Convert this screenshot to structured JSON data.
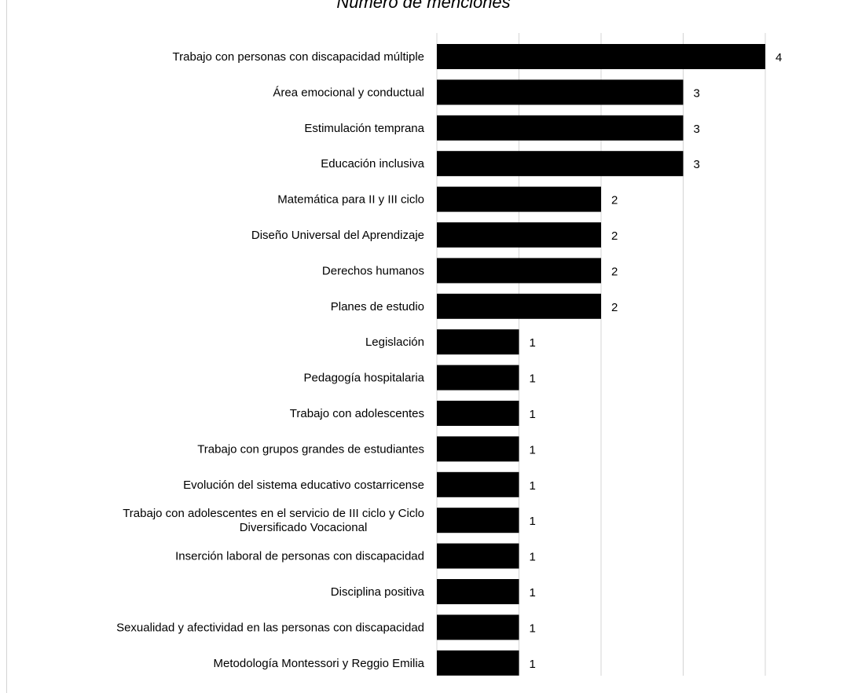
{
  "chart_data": {
    "type": "bar",
    "orientation": "horizontal",
    "title": "Número de menciones",
    "categories": [
      "Trabajo con personas con discapacidad múltiple",
      "Área emocional y conductual",
      "Estimulación temprana",
      "Educación inclusiva",
      "Matemática para II y III ciclo",
      "Diseño Universal del Aprendizaje",
      "Derechos humanos",
      "Planes de estudio",
      "Legislación",
      "Pedagogía hospitalaria",
      "Trabajo con adolescentes",
      "Trabajo con grupos grandes de estudiantes",
      "Evolución del sistema educativo costarricense",
      "Trabajo con adolescentes en el servicio de III ciclo y Ciclo Diversificado Vocacional",
      "Inserción laboral de personas con discapacidad",
      "Disciplina positiva",
      "Sexualidad y afectividad en las personas con discapacidad",
      "Metodología Montessori y Reggio Emilia"
    ],
    "values": [
      4,
      3,
      3,
      3,
      2,
      2,
      2,
      2,
      1,
      1,
      1,
      1,
      1,
      1,
      1,
      1,
      1,
      1
    ],
    "xlim": [
      0,
      5
    ],
    "grid": true,
    "bar_color": "#000000",
    "grid_color": "#d4d4d4"
  }
}
